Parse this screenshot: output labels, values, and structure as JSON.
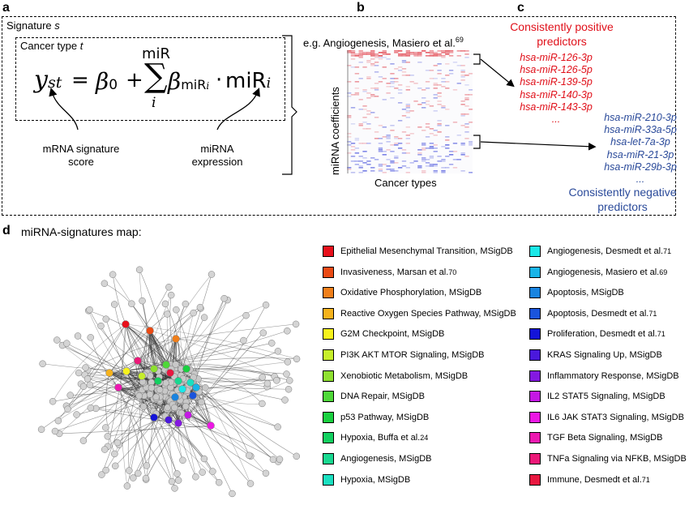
{
  "panels": {
    "a": "a",
    "b": "b",
    "c": "c",
    "d": "d"
  },
  "panel_a": {
    "signature_label": "Signature ",
    "signature_var": "s",
    "cancer_type_label": "Cancer type ",
    "cancer_type_var": "t",
    "eq_y": "y",
    "eq_y_sub": "st",
    "eq_equals": "=",
    "eq_beta0": "β",
    "eq_beta0_sub": "0",
    "eq_plus": "+",
    "eq_sum_top": "miR",
    "eq_sum": "∑",
    "eq_sum_bottom": "i",
    "eq_beta": "β",
    "eq_beta_sub": "miR",
    "eq_beta_sub_i": "i",
    "eq_dot": "·",
    "eq_mir": "miR",
    "eq_mir_sub": "i",
    "mrna_label_1": "mRNA signature",
    "mrna_label_2": "score",
    "mirna_label_1": "miRNA",
    "mirna_label_2": "expression"
  },
  "panel_b": {
    "example": "e.g. Angiogenesis, Masiero et al.",
    "example_ref": "69",
    "ylabel": "miRNA coefficients",
    "xlabel": "Cancer types"
  },
  "panel_c": {
    "positive_title_1": "Consistently positive",
    "positive_title_2": "predictors",
    "positive_items": [
      "hsa-miR-126-3p",
      "hsa-miR-126-5p",
      "hsa-miR-139-5p",
      "hsa-miR-140-3p",
      "hsa-miR-143-3p",
      "..."
    ],
    "negative_items": [
      "hsa-miR-210-3p",
      "hsa-miR-33a-5p",
      "hsa-let-7a-3p",
      "hsa-miR-21-3p",
      "hsa-miR-29b-3p",
      "..."
    ],
    "negative_title_1": "Consistently negative",
    "negative_title_2": "predictors"
  },
  "panel_d": {
    "title": "miRNA-signatures map:",
    "legend_left": [
      {
        "label": "Epithelial Mesenchymal Transition, MSigDB",
        "ref": "",
        "color": "#e8101c"
      },
      {
        "label": "Invasiveness, Marsan et al.",
        "ref": "70",
        "color": "#ea4a14"
      },
      {
        "label": "Oxidative Phosphorylation, MSigDB",
        "ref": "",
        "color": "#f07f1a"
      },
      {
        "label": "Reactive Oxygen Species Pathway, MSigDB",
        "ref": "",
        "color": "#f5b21c"
      },
      {
        "label": "G2M Checkpoint, MSigDB",
        "ref": "",
        "color": "#f6f21c"
      },
      {
        "label": "PI3K AKT MTOR Signaling, MSigDB",
        "ref": "",
        "color": "#c6ee2a"
      },
      {
        "label": "Xenobiotic Metabolism, MSigDB",
        "ref": "",
        "color": "#8ee030"
      },
      {
        "label": "DNA Repair, MSigDB",
        "ref": "",
        "color": "#4ed838"
      },
      {
        "label": "p53 Pathway, MSigDB",
        "ref": "",
        "color": "#1ad040"
      },
      {
        "label": "Hypoxia, Buffa et al.",
        "ref": "24",
        "color": "#12d060"
      },
      {
        "label": "Angiogenesis, MSigDB",
        "ref": "",
        "color": "#18d890"
      },
      {
        "label": "Hypoxia, MSigDB",
        "ref": "",
        "color": "#1ae0c0"
      }
    ],
    "legend_right": [
      {
        "label": "Angiogenesis, Desmedt et al.",
        "ref": "71",
        "color": "#1ae8e8"
      },
      {
        "label": "Angiogenesis, Masiero et al.",
        "ref": "69",
        "color": "#18b4e8"
      },
      {
        "label": "Apoptosis, MSigDB",
        "ref": "",
        "color": "#1a84e0"
      },
      {
        "label": "Apoptosis, Desmedt et al.",
        "ref": "71",
        "color": "#1a54dc"
      },
      {
        "label": "Proliferation, Desmedt et al.",
        "ref": "71",
        "color": "#1414d8"
      },
      {
        "label": "KRAS Signaling Up, MSigDB",
        "ref": "",
        "color": "#4a18dc"
      },
      {
        "label": "Inflammatory Response, MSigDB",
        "ref": "",
        "color": "#8418e0"
      },
      {
        "label": "IL2 STAT5 Signaling, MSigDB",
        "ref": "",
        "color": "#c418e4"
      },
      {
        "label": "IL6 JAK STAT3 Signaling, MSigDB",
        "ref": "",
        "color": "#ec18e4"
      },
      {
        "label": "TGF Beta Signaling, MSigDB",
        "ref": "",
        "color": "#ec18b0"
      },
      {
        "label": "TNFa Signaling via NFKB, MSigDB",
        "ref": "",
        "color": "#ec1878"
      },
      {
        "label": "Immune, Desmedt et al.",
        "ref": "71",
        "color": "#e81840"
      }
    ]
  }
}
